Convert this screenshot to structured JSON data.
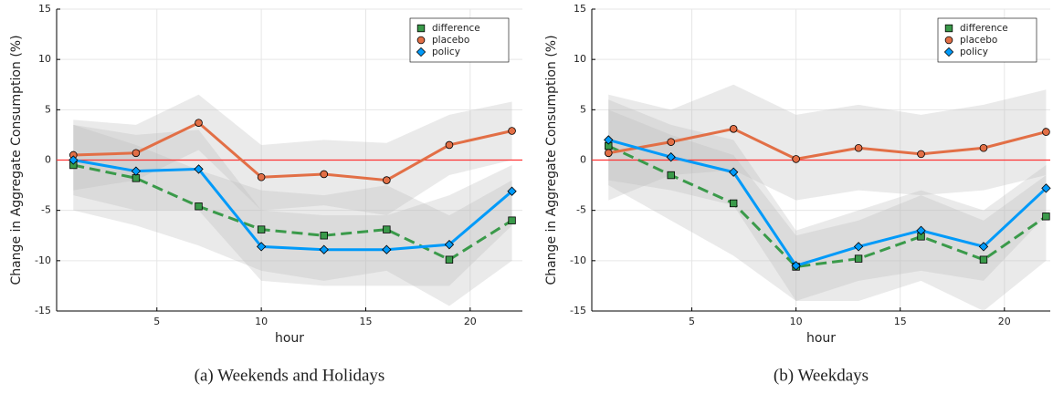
{
  "chart_data": [
    {
      "type": "line",
      "caption": "(a) Weekends and Holidays",
      "xlabel": "hour",
      "ylabel": "Change in Aggregate Consumption (%)",
      "x": [
        1,
        4,
        7,
        10,
        13,
        16,
        19,
        22
      ],
      "xlim": [
        0.2,
        22.5
      ],
      "xticks": [
        5,
        10,
        15,
        20
      ],
      "ylim": [
        -15,
        15
      ],
      "yticks": [
        -15,
        -10,
        -5,
        0,
        5,
        10,
        15
      ],
      "grid": true,
      "legend": "top-right",
      "hline": 0,
      "hline_color": "#ff3333",
      "series": [
        {
          "name": "difference",
          "color": "#3a9a4a",
          "marker": "square",
          "dash": true,
          "values": [
            -0.5,
            -1.8,
            -4.6,
            -6.9,
            -7.5,
            -6.9,
            -9.9,
            -6.0
          ],
          "upper": [
            3.5,
            1.5,
            -1,
            -3,
            -3.5,
            -2.5,
            -5.5,
            -2
          ],
          "lower": [
            -5,
            -6.5,
            -8.5,
            -11,
            -12,
            -11,
            -14.5,
            -10
          ]
        },
        {
          "name": "placebo",
          "color": "#e26f46",
          "marker": "circle",
          "dash": false,
          "values": [
            0.5,
            0.7,
            3.7,
            -1.7,
            -1.4,
            -2.0,
            1.5,
            2.9
          ],
          "upper": [
            4,
            3.5,
            6.5,
            1.5,
            2,
            1.7,
            4.5,
            5.8
          ],
          "lower": [
            -3,
            -2,
            1,
            -5,
            -4.5,
            -5.5,
            -1.5,
            0
          ]
        },
        {
          "name": "policy",
          "color": "#009af9",
          "marker": "diamond",
          "dash": false,
          "values": [
            0,
            -1.1,
            -0.9,
            -8.6,
            -8.9,
            -8.9,
            -8.4,
            -3.1
          ],
          "upper": [
            3.5,
            2.5,
            3,
            -5,
            -5.5,
            -5.5,
            -3.5,
            -0.5
          ],
          "lower": [
            -3.5,
            -5,
            -5,
            -12,
            -12.5,
            -12.5,
            -12.5,
            -6.5
          ]
        }
      ]
    },
    {
      "type": "line",
      "caption": "(b) Weekdays",
      "xlabel": "hour",
      "ylabel": "Change in Aggregate Consumption (%)",
      "x": [
        1,
        4,
        7,
        10,
        13,
        16,
        19,
        22
      ],
      "xlim": [
        0.2,
        22.2
      ],
      "xticks": [
        5,
        10,
        15,
        20
      ],
      "ylim": [
        -15,
        15
      ],
      "yticks": [
        -15,
        -10,
        -5,
        0,
        5,
        10,
        15
      ],
      "grid": true,
      "legend": "top-right",
      "hline": 0,
      "hline_color": "#ff3333",
      "series": [
        {
          "name": "difference",
          "color": "#3a9a4a",
          "marker": "square",
          "dash": true,
          "values": [
            1.4,
            -1.5,
            -4.3,
            -10.6,
            -9.8,
            -7.6,
            -9.9,
            -5.6
          ],
          "upper": [
            5,
            2.5,
            0.5,
            -7.5,
            -6,
            -3.5,
            -6,
            -1.5
          ],
          "lower": [
            -2.5,
            -6,
            -9.5,
            -14,
            -14,
            -12,
            -15,
            -10
          ]
        },
        {
          "name": "placebo",
          "color": "#e26f46",
          "marker": "circle",
          "dash": false,
          "values": [
            0.7,
            1.8,
            3.1,
            0.1,
            1.2,
            0.6,
            1.2,
            2.8
          ],
          "upper": [
            6.5,
            5,
            7.5,
            4.5,
            5.5,
            4.5,
            5.5,
            7
          ],
          "lower": [
            -4,
            -1.5,
            -1,
            -4,
            -3,
            -3.5,
            -3,
            -1.5
          ]
        },
        {
          "name": "policy",
          "color": "#009af9",
          "marker": "diamond",
          "dash": false,
          "values": [
            2.0,
            0.3,
            -1.2,
            -10.5,
            -8.6,
            -7.0,
            -8.6,
            -2.8
          ],
          "upper": [
            6,
            3.5,
            2,
            -7,
            -5,
            -3,
            -5,
            -0.5
          ],
          "lower": [
            -2,
            -3,
            -4.5,
            -14,
            -12,
            -11,
            -12,
            -5.5
          ]
        }
      ]
    }
  ]
}
